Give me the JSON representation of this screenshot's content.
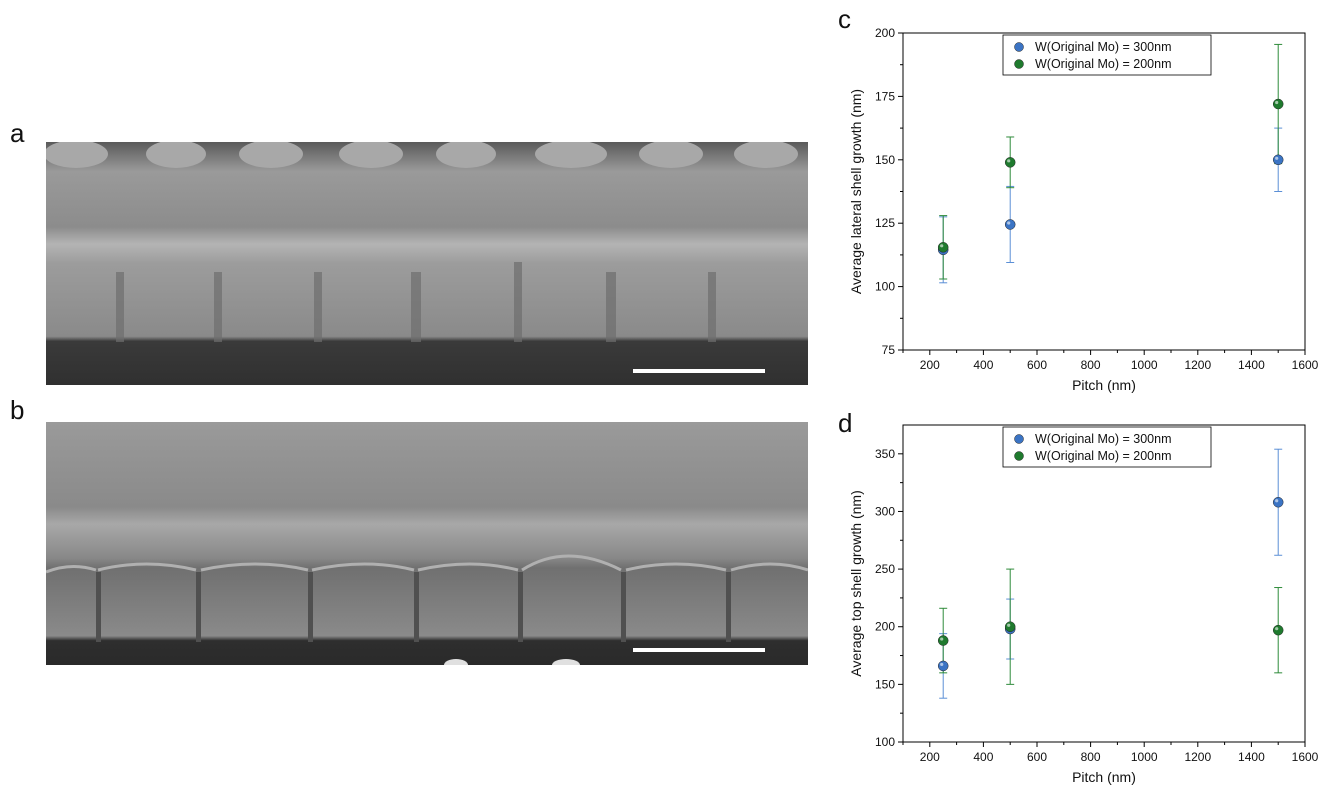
{
  "panels": {
    "a": "a",
    "b": "b",
    "c": "c",
    "d": "d"
  },
  "images": {
    "a": {
      "description_name": "sem-image-a"
    },
    "b": {
      "description_name": "sem-image-b"
    }
  },
  "colors": {
    "series_300": "#3b74c4",
    "series_200": "#1f7a2e",
    "err_300": "#5b8fd6",
    "err_200": "#2e8b3a"
  },
  "chart_data": [
    {
      "type": "scatter",
      "panel": "c",
      "xlabel": "Pitch (nm)",
      "ylabel": "Average lateral shell growth (nm)",
      "xlim": [
        100,
        1600
      ],
      "ylim": [
        75,
        200
      ],
      "xticks": [
        200,
        400,
        600,
        800,
        1000,
        1200,
        1400,
        1600
      ],
      "yticks": [
        75,
        100,
        125,
        150,
        175,
        200
      ],
      "legend_position": "top-center",
      "series": [
        {
          "name": "W(Original Mo) = 300nm",
          "color": "#3b74c4",
          "points": [
            {
              "x": 250,
              "y": 114.5,
              "err": 13
            },
            {
              "x": 500,
              "y": 124.5,
              "err": 15
            },
            {
              "x": 1500,
              "y": 150,
              "err": 12.5
            }
          ]
        },
        {
          "name": "W(Original Mo) = 200nm",
          "color": "#1f7a2e",
          "points": [
            {
              "x": 250,
              "y": 115.5,
              "err": 12.5
            },
            {
              "x": 500,
              "y": 149,
              "err": 10
            },
            {
              "x": 1500,
              "y": 172,
              "err": 23.5
            }
          ]
        }
      ]
    },
    {
      "type": "scatter",
      "panel": "d",
      "xlabel": "Pitch (nm)",
      "ylabel": "Average top shell growth (nm)",
      "xlim": [
        100,
        1600
      ],
      "ylim": [
        100,
        375
      ],
      "xticks": [
        200,
        400,
        600,
        800,
        1000,
        1200,
        1400,
        1600
      ],
      "yticks": [
        100,
        150,
        200,
        250,
        300,
        350
      ],
      "legend_position": "top-center",
      "series": [
        {
          "name": "W(Original Mo) = 300nm",
          "color": "#3b74c4",
          "points": [
            {
              "x": 250,
              "y": 166,
              "err": 28
            },
            {
              "x": 500,
              "y": 198,
              "err": 26
            },
            {
              "x": 1500,
              "y": 308,
              "err": 46
            }
          ]
        },
        {
          "name": "W(Original Mo) = 200nm",
          "color": "#1f7a2e",
          "points": [
            {
              "x": 250,
              "y": 188,
              "err": 28
            },
            {
              "x": 500,
              "y": 200,
              "err": 50
            },
            {
              "x": 1500,
              "y": 197,
              "err": 37
            }
          ]
        }
      ]
    }
  ]
}
